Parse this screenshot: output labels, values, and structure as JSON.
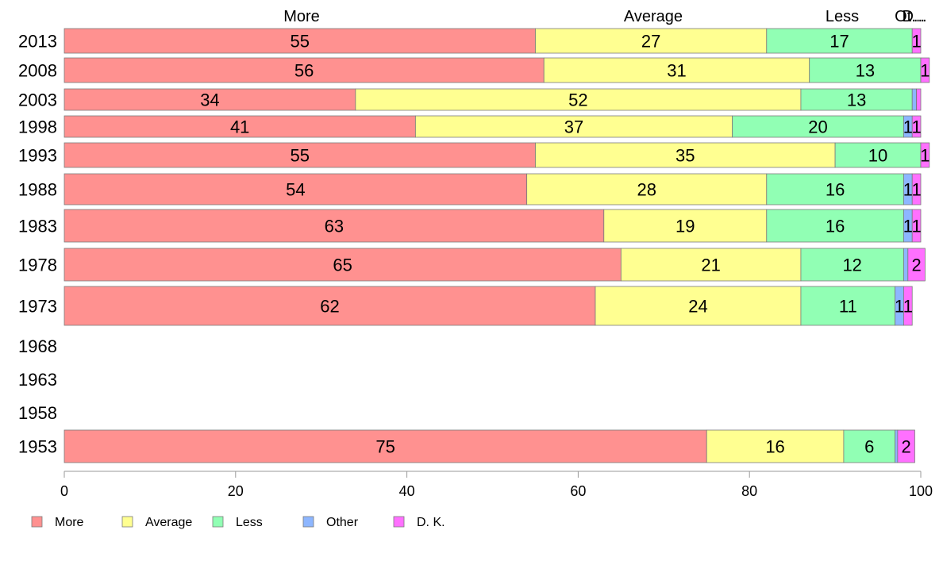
{
  "chart_data": {
    "type": "bar",
    "orientation": "horizontal",
    "stacked": true,
    "categories": [
      "2013",
      "2008",
      "2003",
      "1998",
      "1993",
      "1988",
      "1983",
      "1978",
      "1973",
      "1968",
      "1963",
      "1958",
      "1953"
    ],
    "series": [
      {
        "name": "More",
        "color": "#ff9190",
        "values": [
          55,
          56,
          34,
          41,
          55,
          54,
          63,
          65,
          62,
          null,
          null,
          null,
          75
        ]
      },
      {
        "name": "Average",
        "color": "#ffff91",
        "values": [
          27,
          31,
          52,
          37,
          35,
          28,
          19,
          21,
          24,
          null,
          null,
          null,
          16
        ]
      },
      {
        "name": "Less",
        "color": "#91ffb4",
        "values": [
          17,
          13,
          13,
          20,
          10,
          16,
          16,
          12,
          11,
          null,
          null,
          null,
          6
        ]
      },
      {
        "name": "Other",
        "color": "#8db6ff",
        "values": [
          0,
          0,
          0.5,
          1,
          0,
          1,
          1,
          0.5,
          1,
          null,
          null,
          null,
          0.3
        ]
      },
      {
        "name": "D. K.",
        "color": "#ff70ff",
        "values": [
          1,
          1,
          0.5,
          1,
          1,
          1,
          1,
          2,
          1,
          null,
          null,
          null,
          2
        ]
      }
    ],
    "top_labels": [
      "More",
      "Average",
      "Less",
      "Ot...",
      "D..."
    ],
    "xlim": [
      0,
      100
    ],
    "xticks": [
      0,
      20,
      40,
      60,
      80,
      100
    ],
    "legend_position": "bottom-left",
    "grid": false
  }
}
